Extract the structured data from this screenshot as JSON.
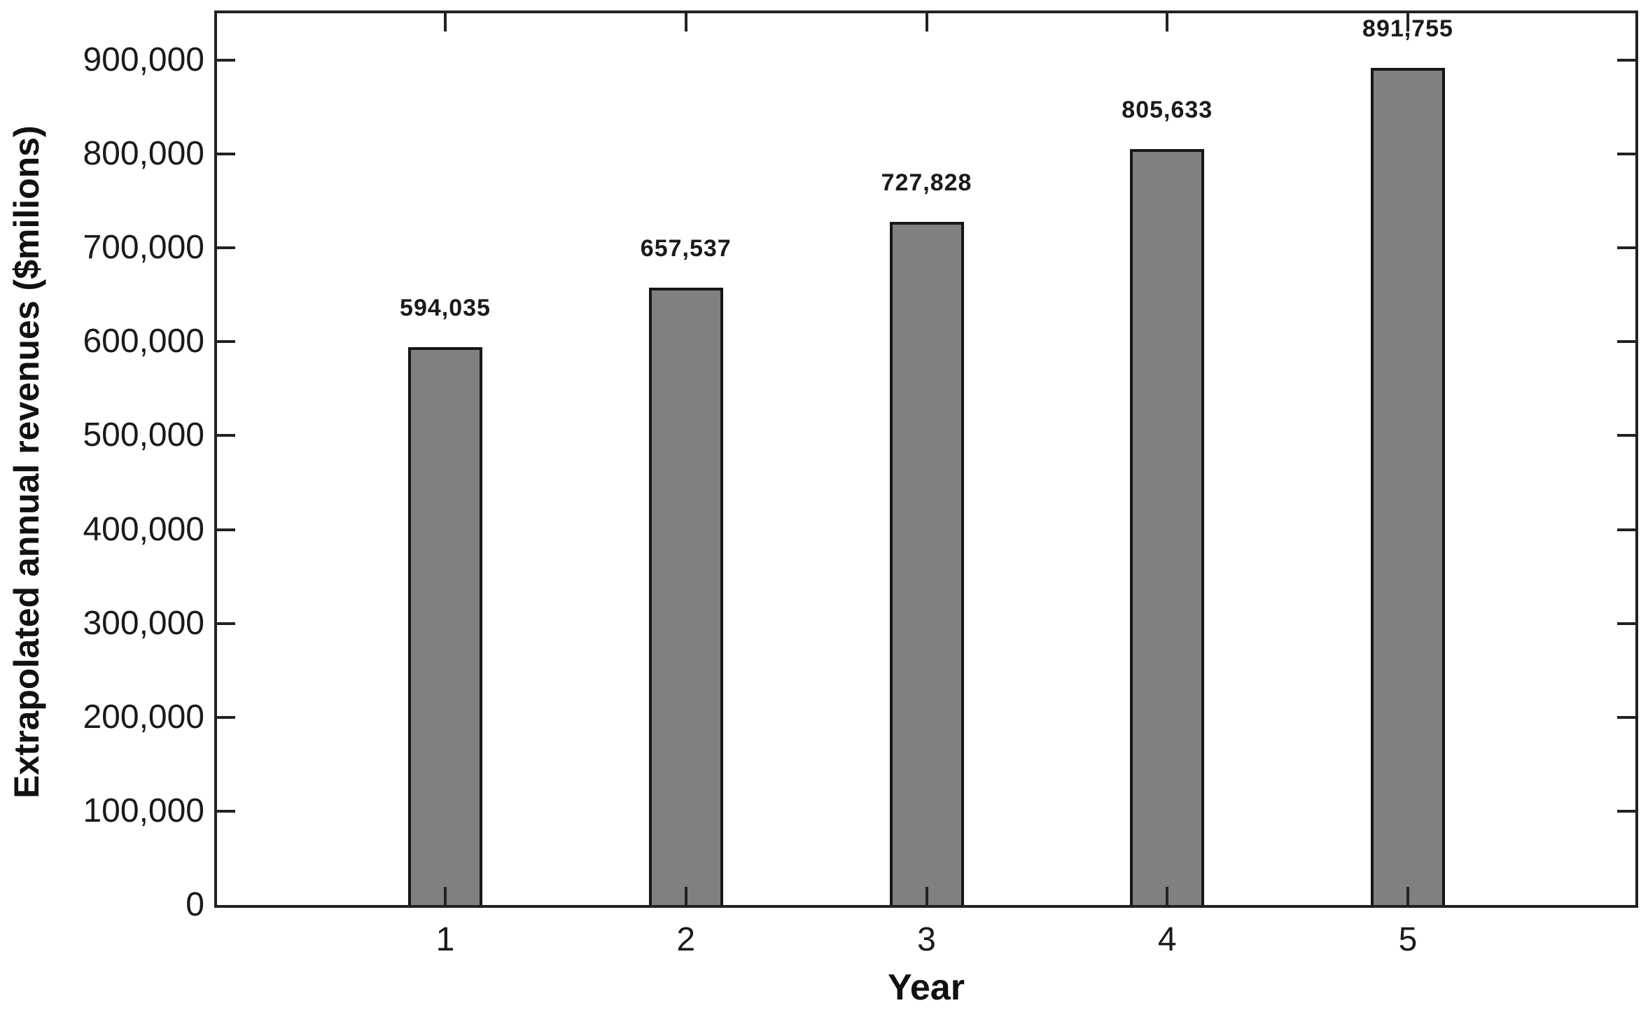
{
  "chart_data": {
    "type": "bar",
    "title": "",
    "xlabel": "Year",
    "ylabel": "Extrapolated annual revenues ($milions)",
    "categories": [
      "1",
      "2",
      "3",
      "4",
      "5"
    ],
    "values": [
      594035,
      657537,
      727828,
      805633,
      891755
    ],
    "value_labels": [
      "594,035",
      "657,537",
      "727,828",
      "805,633",
      "891,755"
    ],
    "series_name": "Extrapolated annual revenues",
    "y_ticks": [
      0,
      100000,
      200000,
      300000,
      400000,
      500000,
      600000,
      700000,
      800000,
      900000
    ],
    "y_tick_labels": [
      "0",
      "100,000",
      "200,000",
      "300,000",
      "400,000",
      "500,000",
      "600,000",
      "700,000",
      "800,000",
      "900,000"
    ],
    "ylim": [
      0,
      950000
    ],
    "grid": false,
    "legend": "none",
    "colors": {
      "bar_fill": "#808080",
      "bar_border": "#161616",
      "axis": "#222222",
      "text": "#1a1a1a",
      "background": "#ffffff"
    }
  }
}
